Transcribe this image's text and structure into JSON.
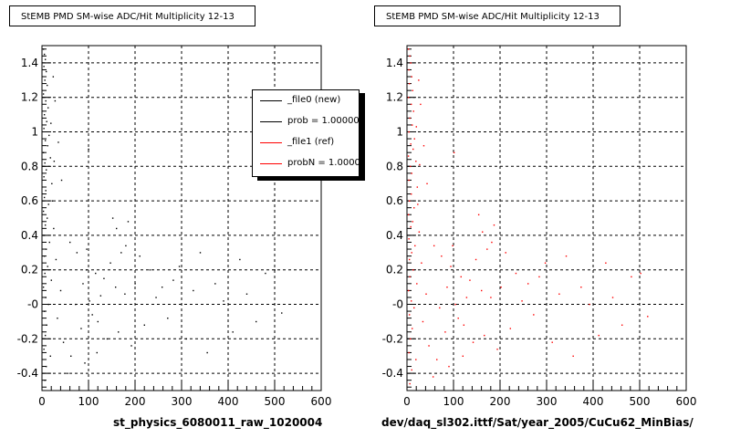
{
  "chart_data": [
    {
      "type": "scatter",
      "title": "StEMB PMD SM-wise ADC/Hit Multiplicity 12-13",
      "xlabel": "st_physics_6080011_raw_1020004",
      "ylabel": "",
      "xlim": [
        0,
        600
      ],
      "ylim": [
        -0.5,
        1.5
      ],
      "x_ticks": [
        "0",
        "100",
        "200",
        "300",
        "400",
        "500",
        "600"
      ],
      "y_ticks": [
        "-0.4",
        "-0.2",
        "-0",
        "0.2",
        "0.4",
        "0.6",
        "0.8",
        "1",
        "1.2",
        "1.4"
      ],
      "grid": true,
      "marker_color": "#000000",
      "legend": {
        "placement": "top-right",
        "entries": [
          {
            "label": "_file0 (new)",
            "color": "#000000"
          },
          {
            "label": "prob = 1.000000",
            "color": "#000000"
          },
          {
            "label": "_file1 (ref)",
            "color": "#ff0000"
          },
          {
            "label": "probN = 1.000000",
            "color": "#ff0000"
          }
        ]
      },
      "points": [
        [
          3,
          1.48
        ],
        [
          5,
          1.45
        ],
        [
          7,
          1.42
        ],
        [
          4,
          1.38
        ],
        [
          9,
          1.35
        ],
        [
          6,
          1.3
        ],
        [
          11,
          1.27
        ],
        [
          3,
          1.22
        ],
        [
          8,
          1.18
        ],
        [
          13,
          1.14
        ],
        [
          5,
          1.1
        ],
        [
          10,
          1.06
        ],
        [
          4,
          1.02
        ],
        [
          15,
          0.98
        ],
        [
          7,
          0.95
        ],
        [
          12,
          0.92
        ],
        [
          3,
          0.88
        ],
        [
          18,
          0.85
        ],
        [
          6,
          0.82
        ],
        [
          9,
          0.78
        ],
        [
          4,
          0.74
        ],
        [
          21,
          0.7
        ],
        [
          8,
          0.66
        ],
        [
          5,
          0.62
        ],
        [
          14,
          0.58
        ],
        [
          3,
          0.54
        ],
        [
          11,
          0.5
        ],
        [
          7,
          0.46
        ],
        [
          25,
          0.44
        ],
        [
          4,
          0.4
        ],
        [
          16,
          0.36
        ],
        [
          9,
          0.32
        ],
        [
          5,
          0.28
        ],
        [
          30,
          0.26
        ],
        [
          12,
          0.22
        ],
        [
          6,
          0.18
        ],
        [
          20,
          0.14
        ],
        [
          3,
          0.1
        ],
        [
          40,
          0.08
        ],
        [
          8,
          0.04
        ],
        [
          14,
          0.0
        ],
        [
          5,
          -0.04
        ],
        [
          33,
          -0.08
        ],
        [
          10,
          -0.12
        ],
        [
          7,
          -0.18
        ],
        [
          46,
          -0.22
        ],
        [
          4,
          -0.26
        ],
        [
          18,
          -0.3
        ],
        [
          9,
          -0.36
        ],
        [
          55,
          -0.4
        ],
        [
          6,
          -0.44
        ],
        [
          24,
          1.32
        ],
        [
          28,
          1.18
        ],
        [
          19,
          1.05
        ],
        [
          35,
          0.94
        ],
        [
          26,
          0.83
        ],
        [
          42,
          0.72
        ],
        [
          22,
          0.6
        ],
        [
          60,
          0.36
        ],
        [
          75,
          0.3
        ],
        [
          88,
          0.12
        ],
        [
          95,
          0.2
        ],
        [
          100,
          0.9
        ],
        [
          102,
          0.02
        ],
        [
          108,
          -0.06
        ],
        [
          115,
          0.18
        ],
        [
          120,
          -0.1
        ],
        [
          126,
          0.05
        ],
        [
          133,
          0.15
        ],
        [
          140,
          -0.2
        ],
        [
          147,
          0.24
        ],
        [
          152,
          0.5
        ],
        [
          158,
          0.1
        ],
        [
          164,
          -0.16
        ],
        [
          170,
          0.3
        ],
        [
          178,
          0.06
        ],
        [
          185,
          0.48
        ],
        [
          192,
          -0.24
        ],
        [
          200,
          0.12
        ],
        [
          210,
          0.28
        ],
        [
          220,
          -0.12
        ],
        [
          232,
          0.2
        ],
        [
          245,
          0.04
        ],
        [
          258,
          0.1
        ],
        [
          270,
          -0.08
        ],
        [
          282,
          0.14
        ],
        [
          295,
          0.22
        ],
        [
          310,
          -0.2
        ],
        [
          325,
          0.08
        ],
        [
          340,
          0.3
        ],
        [
          355,
          -0.28
        ],
        [
          372,
          0.12
        ],
        [
          390,
          0.02
        ],
        [
          410,
          -0.16
        ],
        [
          425,
          0.26
        ],
        [
          440,
          0.06
        ],
        [
          460,
          -0.1
        ],
        [
          480,
          0.18
        ],
        [
          500,
          0.2
        ],
        [
          515,
          -0.05
        ],
        [
          160,
          0.44
        ],
        [
          62,
          -0.3
        ],
        [
          92,
          -0.34
        ],
        [
          118,
          -0.28
        ],
        [
          72,
          0.0
        ],
        [
          84,
          -0.14
        ],
        [
          96,
          0.32
        ],
        [
          180,
          0.34
        ]
      ]
    },
    {
      "type": "scatter",
      "title": "StEMB PMD SM-wise ADC/Hit Multiplicity 12-13",
      "xlabel": "dev/daq_sl302.ittf/Sat/year_2005/CuCu62_MinBias/",
      "ylabel": "",
      "xlim": [
        0,
        600
      ],
      "ylim": [
        -0.5,
        1.5
      ],
      "x_ticks": [
        "0",
        "100",
        "200",
        "300",
        "400",
        "500",
        "600"
      ],
      "y_ticks": [
        "-0.4",
        "-0.2",
        "-0",
        "0.2",
        "0.4",
        "0.6",
        "0.8",
        "1",
        "1.2",
        "1.4"
      ],
      "grid": true,
      "marker_color": "#ff0000",
      "points": [
        [
          3,
          1.48
        ],
        [
          6,
          1.44
        ],
        [
          8,
          1.4
        ],
        [
          4,
          1.36
        ],
        [
          10,
          1.32
        ],
        [
          5,
          1.28
        ],
        [
          12,
          1.24
        ],
        [
          3,
          1.2
        ],
        [
          9,
          1.16
        ],
        [
          14,
          1.12
        ],
        [
          6,
          1.08
        ],
        [
          11,
          1.04
        ],
        [
          4,
          1.0
        ],
        [
          16,
          0.96
        ],
        [
          8,
          0.93
        ],
        [
          13,
          0.9
        ],
        [
          3,
          0.86
        ],
        [
          19,
          0.83
        ],
        [
          7,
          0.8
        ],
        [
          10,
          0.76
        ],
        [
          4,
          0.72
        ],
        [
          22,
          0.68
        ],
        [
          9,
          0.64
        ],
        [
          5,
          0.6
        ],
        [
          15,
          0.56
        ],
        [
          3,
          0.52
        ],
        [
          12,
          0.48
        ],
        [
          8,
          0.45
        ],
        [
          26,
          0.42
        ],
        [
          4,
          0.38
        ],
        [
          17,
          0.34
        ],
        [
          10,
          0.3
        ],
        [
          5,
          0.26
        ],
        [
          31,
          0.24
        ],
        [
          13,
          0.2
        ],
        [
          6,
          0.16
        ],
        [
          21,
          0.12
        ],
        [
          3,
          0.08
        ],
        [
          41,
          0.06
        ],
        [
          9,
          0.02
        ],
        [
          15,
          -0.02
        ],
        [
          5,
          -0.06
        ],
        [
          34,
          -0.1
        ],
        [
          11,
          -0.14
        ],
        [
          7,
          -0.2
        ],
        [
          47,
          -0.24
        ],
        [
          4,
          -0.28
        ],
        [
          19,
          -0.32
        ],
        [
          10,
          -0.38
        ],
        [
          56,
          -0.42
        ],
        [
          6,
          -0.46
        ],
        [
          25,
          1.3
        ],
        [
          29,
          1.16
        ],
        [
          20,
          1.03
        ],
        [
          36,
          0.92
        ],
        [
          27,
          0.81
        ],
        [
          43,
          0.7
        ],
        [
          23,
          0.58
        ],
        [
          58,
          0.34
        ],
        [
          74,
          0.28
        ],
        [
          86,
          0.1
        ],
        [
          94,
          0.22
        ],
        [
          101,
          0.88
        ],
        [
          104,
          0.0
        ],
        [
          110,
          -0.08
        ],
        [
          116,
          0.16
        ],
        [
          122,
          -0.12
        ],
        [
          128,
          0.04
        ],
        [
          135,
          0.14
        ],
        [
          142,
          -0.22
        ],
        [
          148,
          0.26
        ],
        [
          154,
          0.52
        ],
        [
          160,
          0.08
        ],
        [
          166,
          -0.18
        ],
        [
          172,
          0.32
        ],
        [
          180,
          0.04
        ],
        [
          187,
          0.46
        ],
        [
          194,
          -0.26
        ],
        [
          202,
          0.1
        ],
        [
          212,
          0.3
        ],
        [
          222,
          -0.14
        ],
        [
          234,
          0.18
        ],
        [
          247,
          0.02
        ],
        [
          260,
          0.12
        ],
        [
          272,
          -0.06
        ],
        [
          284,
          0.16
        ],
        [
          297,
          0.24
        ],
        [
          312,
          -0.22
        ],
        [
          327,
          0.06
        ],
        [
          342,
          0.28
        ],
        [
          357,
          -0.3
        ],
        [
          374,
          0.1
        ],
        [
          392,
          0.0
        ],
        [
          412,
          -0.18
        ],
        [
          427,
          0.24
        ],
        [
          442,
          0.04
        ],
        [
          462,
          -0.12
        ],
        [
          482,
          0.16
        ],
        [
          502,
          0.18
        ],
        [
          517,
          -0.07
        ],
        [
          162,
          0.42
        ],
        [
          64,
          -0.32
        ],
        [
          90,
          -0.36
        ],
        [
          120,
          -0.3
        ],
        [
          70,
          -0.02
        ],
        [
          82,
          -0.16
        ],
        [
          98,
          0.34
        ],
        [
          182,
          0.36
        ]
      ]
    }
  ]
}
